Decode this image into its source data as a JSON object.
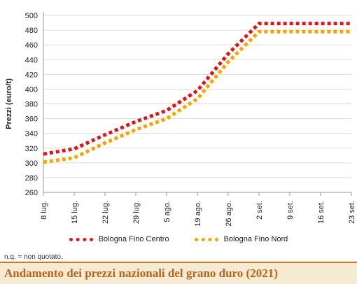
{
  "chart_data": {
    "type": "line",
    "ylabel": "Prezzi (euro/t)",
    "xlabel": "",
    "categories": [
      "8 lug.",
      "15 lug.",
      "22 lug.",
      "29 lug.",
      "5 ago.",
      "19 ago.",
      "26 ago.",
      "2 set.",
      "9 set.",
      "16 set.",
      "23 set."
    ],
    "yticks": [
      260,
      280,
      300,
      320,
      340,
      360,
      380,
      400,
      420,
      440,
      460,
      480,
      500
    ],
    "ylim": [
      260,
      500
    ],
    "grid": "horizontal",
    "legend_position": "bottom",
    "series": [
      {
        "name": "Bologna Fino Centro",
        "color": "#d7191c",
        "values": [
          312,
          319,
          338,
          356,
          371,
          398,
          448,
          489,
          489,
          489,
          489
        ]
      },
      {
        "name": "Bologna Fino Nord",
        "color": "#f5a500",
        "values": [
          301,
          307,
          327,
          345,
          360,
          387,
          437,
          478,
          478,
          478,
          478
        ]
      }
    ]
  },
  "footnote": "n.q. = non quotato.",
  "caption": "Andamento dei prezzi nazionali del grano duro (2021)"
}
